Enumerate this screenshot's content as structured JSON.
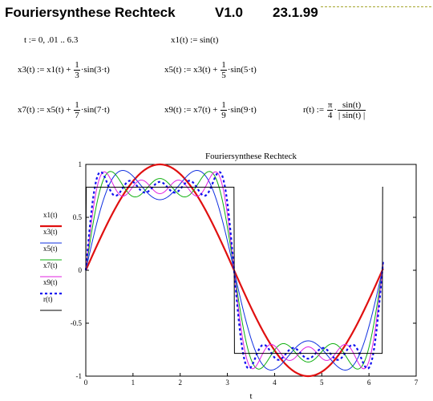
{
  "header": {
    "title": "Fouriersynthese  Rechteck",
    "version": "V1.0",
    "date": "23.1.99"
  },
  "formulas": {
    "t_def": "t := 0, .01 .. 6.3",
    "x1_def": "x1(t) := sin(t)",
    "x3_lhs": "x3(t) := x1(t) +",
    "x3_num": "1",
    "x3_den": "3",
    "x3_rhs": "·sin(3·t)",
    "x5_lhs": "x5(t) := x3(t) +",
    "x5_num": "1",
    "x5_den": "5",
    "x5_rhs": "·sin(5·t)",
    "x7_lhs": "x7(t) := x5(t) +",
    "x7_num": "1",
    "x7_den": "7",
    "x7_rhs": "·sin(7·t)",
    "x9_lhs": "x9(t) := x7(t) +",
    "x9_num": "1",
    "x9_den": "9",
    "x9_rhs": "·sin(9·t)",
    "r_lhs": "r(t) :=",
    "r_num": "π",
    "r_den": "4",
    "r_rnum": "sin(t)",
    "r_rden": "| sin(t) |"
  },
  "chart_data": {
    "type": "line",
    "title": "Fouriersynthese Rechteck",
    "xlabel": "t",
    "xlim": [
      0,
      7
    ],
    "ylim": [
      -1,
      1
    ],
    "x_range": [
      0,
      6.3
    ],
    "x_step": 0.01,
    "x_ticks": [
      "0",
      "1",
      "2",
      "3",
      "4",
      "5",
      "6",
      "7"
    ],
    "y_ticks": [
      "1",
      "0.5",
      "0",
      "-0.5",
      "-1"
    ],
    "legend_position": "left",
    "series": [
      {
        "name": "x1(t)",
        "harmonics": [
          1
        ],
        "color": "#e01010",
        "style": "solid-thick"
      },
      {
        "name": "x3(t)",
        "harmonics": [
          1,
          3
        ],
        "color": "#1030e0",
        "style": "solid"
      },
      {
        "name": "x5(t)",
        "harmonics": [
          1,
          3,
          5
        ],
        "color": "#10b010",
        "style": "solid"
      },
      {
        "name": "x7(t)",
        "harmonics": [
          1,
          3,
          5,
          7
        ],
        "color": "#e020e0",
        "style": "solid"
      },
      {
        "name": "x9(t)",
        "harmonics": [
          1,
          3,
          5,
          7,
          9
        ],
        "color": "#1010f0",
        "style": "dotted-thick"
      },
      {
        "name": "r(t)",
        "function": "pi/4*sign(sin(t))",
        "color": "#000000",
        "style": "solid"
      }
    ]
  }
}
